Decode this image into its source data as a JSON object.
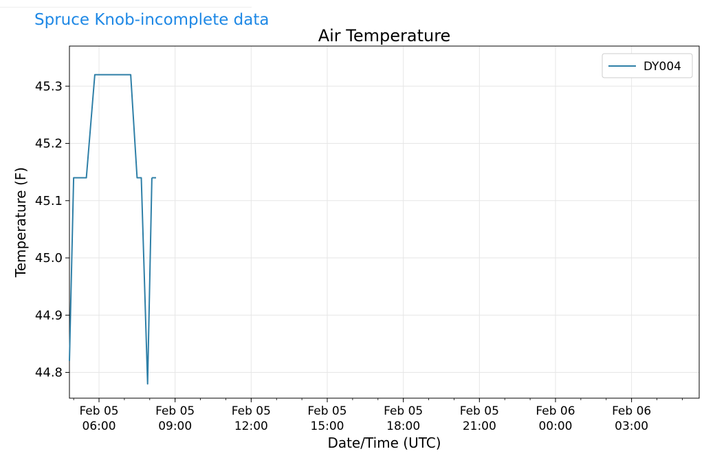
{
  "header": {
    "title": "Spruce Knob-incomplete data"
  },
  "chart_data": {
    "type": "line",
    "title": "Air Temperature",
    "xlabel": "Date/Time (UTC)",
    "ylabel": "Temperature (F)",
    "xlim": [
      "2025-02-05T04:50",
      "2025-02-06T05:40"
    ],
    "ylim": [
      44.755,
      45.37
    ],
    "x_ticks": [
      {
        "value": "2025-02-05T06:00",
        "line1": "Feb 05",
        "line2": "06:00"
      },
      {
        "value": "2025-02-05T09:00",
        "line1": "Feb 05",
        "line2": "09:00"
      },
      {
        "value": "2025-02-05T12:00",
        "line1": "Feb 05",
        "line2": "12:00"
      },
      {
        "value": "2025-02-05T15:00",
        "line1": "Feb 05",
        "line2": "15:00"
      },
      {
        "value": "2025-02-05T18:00",
        "line1": "Feb 05",
        "line2": "18:00"
      },
      {
        "value": "2025-02-05T21:00",
        "line1": "Feb 05",
        "line2": "21:00"
      },
      {
        "value": "2025-02-06T00:00",
        "line1": "Feb 06",
        "line2": "00:00"
      },
      {
        "value": "2025-02-06T03:00",
        "line1": "Feb 06",
        "line2": "03:00"
      }
    ],
    "y_ticks": [
      {
        "value": 44.8,
        "label": "44.8"
      },
      {
        "value": 44.9,
        "label": "44.9"
      },
      {
        "value": 45.0,
        "label": "45.0"
      },
      {
        "value": 45.1,
        "label": "45.1"
      },
      {
        "value": 45.2,
        "label": "45.2"
      },
      {
        "value": 45.3,
        "label": "45.3"
      }
    ],
    "grid": true,
    "legend_position": "top-right",
    "series": [
      {
        "name": "DY004",
        "color": "#2e7fa7",
        "segments": [
          [
            {
              "x": "2025-02-05T04:50",
              "y": 44.82
            },
            {
              "x": "2025-02-05T05:00",
              "y": 45.14
            },
            {
              "x": "2025-02-05T05:30",
              "y": 45.14
            },
            {
              "x": "2025-02-05T05:50",
              "y": 45.32
            },
            {
              "x": "2025-02-05T07:15",
              "y": 45.32
            },
            {
              "x": "2025-02-05T07:30",
              "y": 45.14
            },
            {
              "x": "2025-02-05T07:40",
              "y": 45.14
            },
            {
              "x": "2025-02-05T07:55",
              "y": 44.78
            },
            {
              "x": "2025-02-05T08:05",
              "y": 45.14
            }
          ],
          [
            {
              "x": "2025-02-05T08:05",
              "y": 45.14
            },
            {
              "x": "2025-02-05T08:15",
              "y": 45.14
            }
          ]
        ]
      }
    ]
  }
}
